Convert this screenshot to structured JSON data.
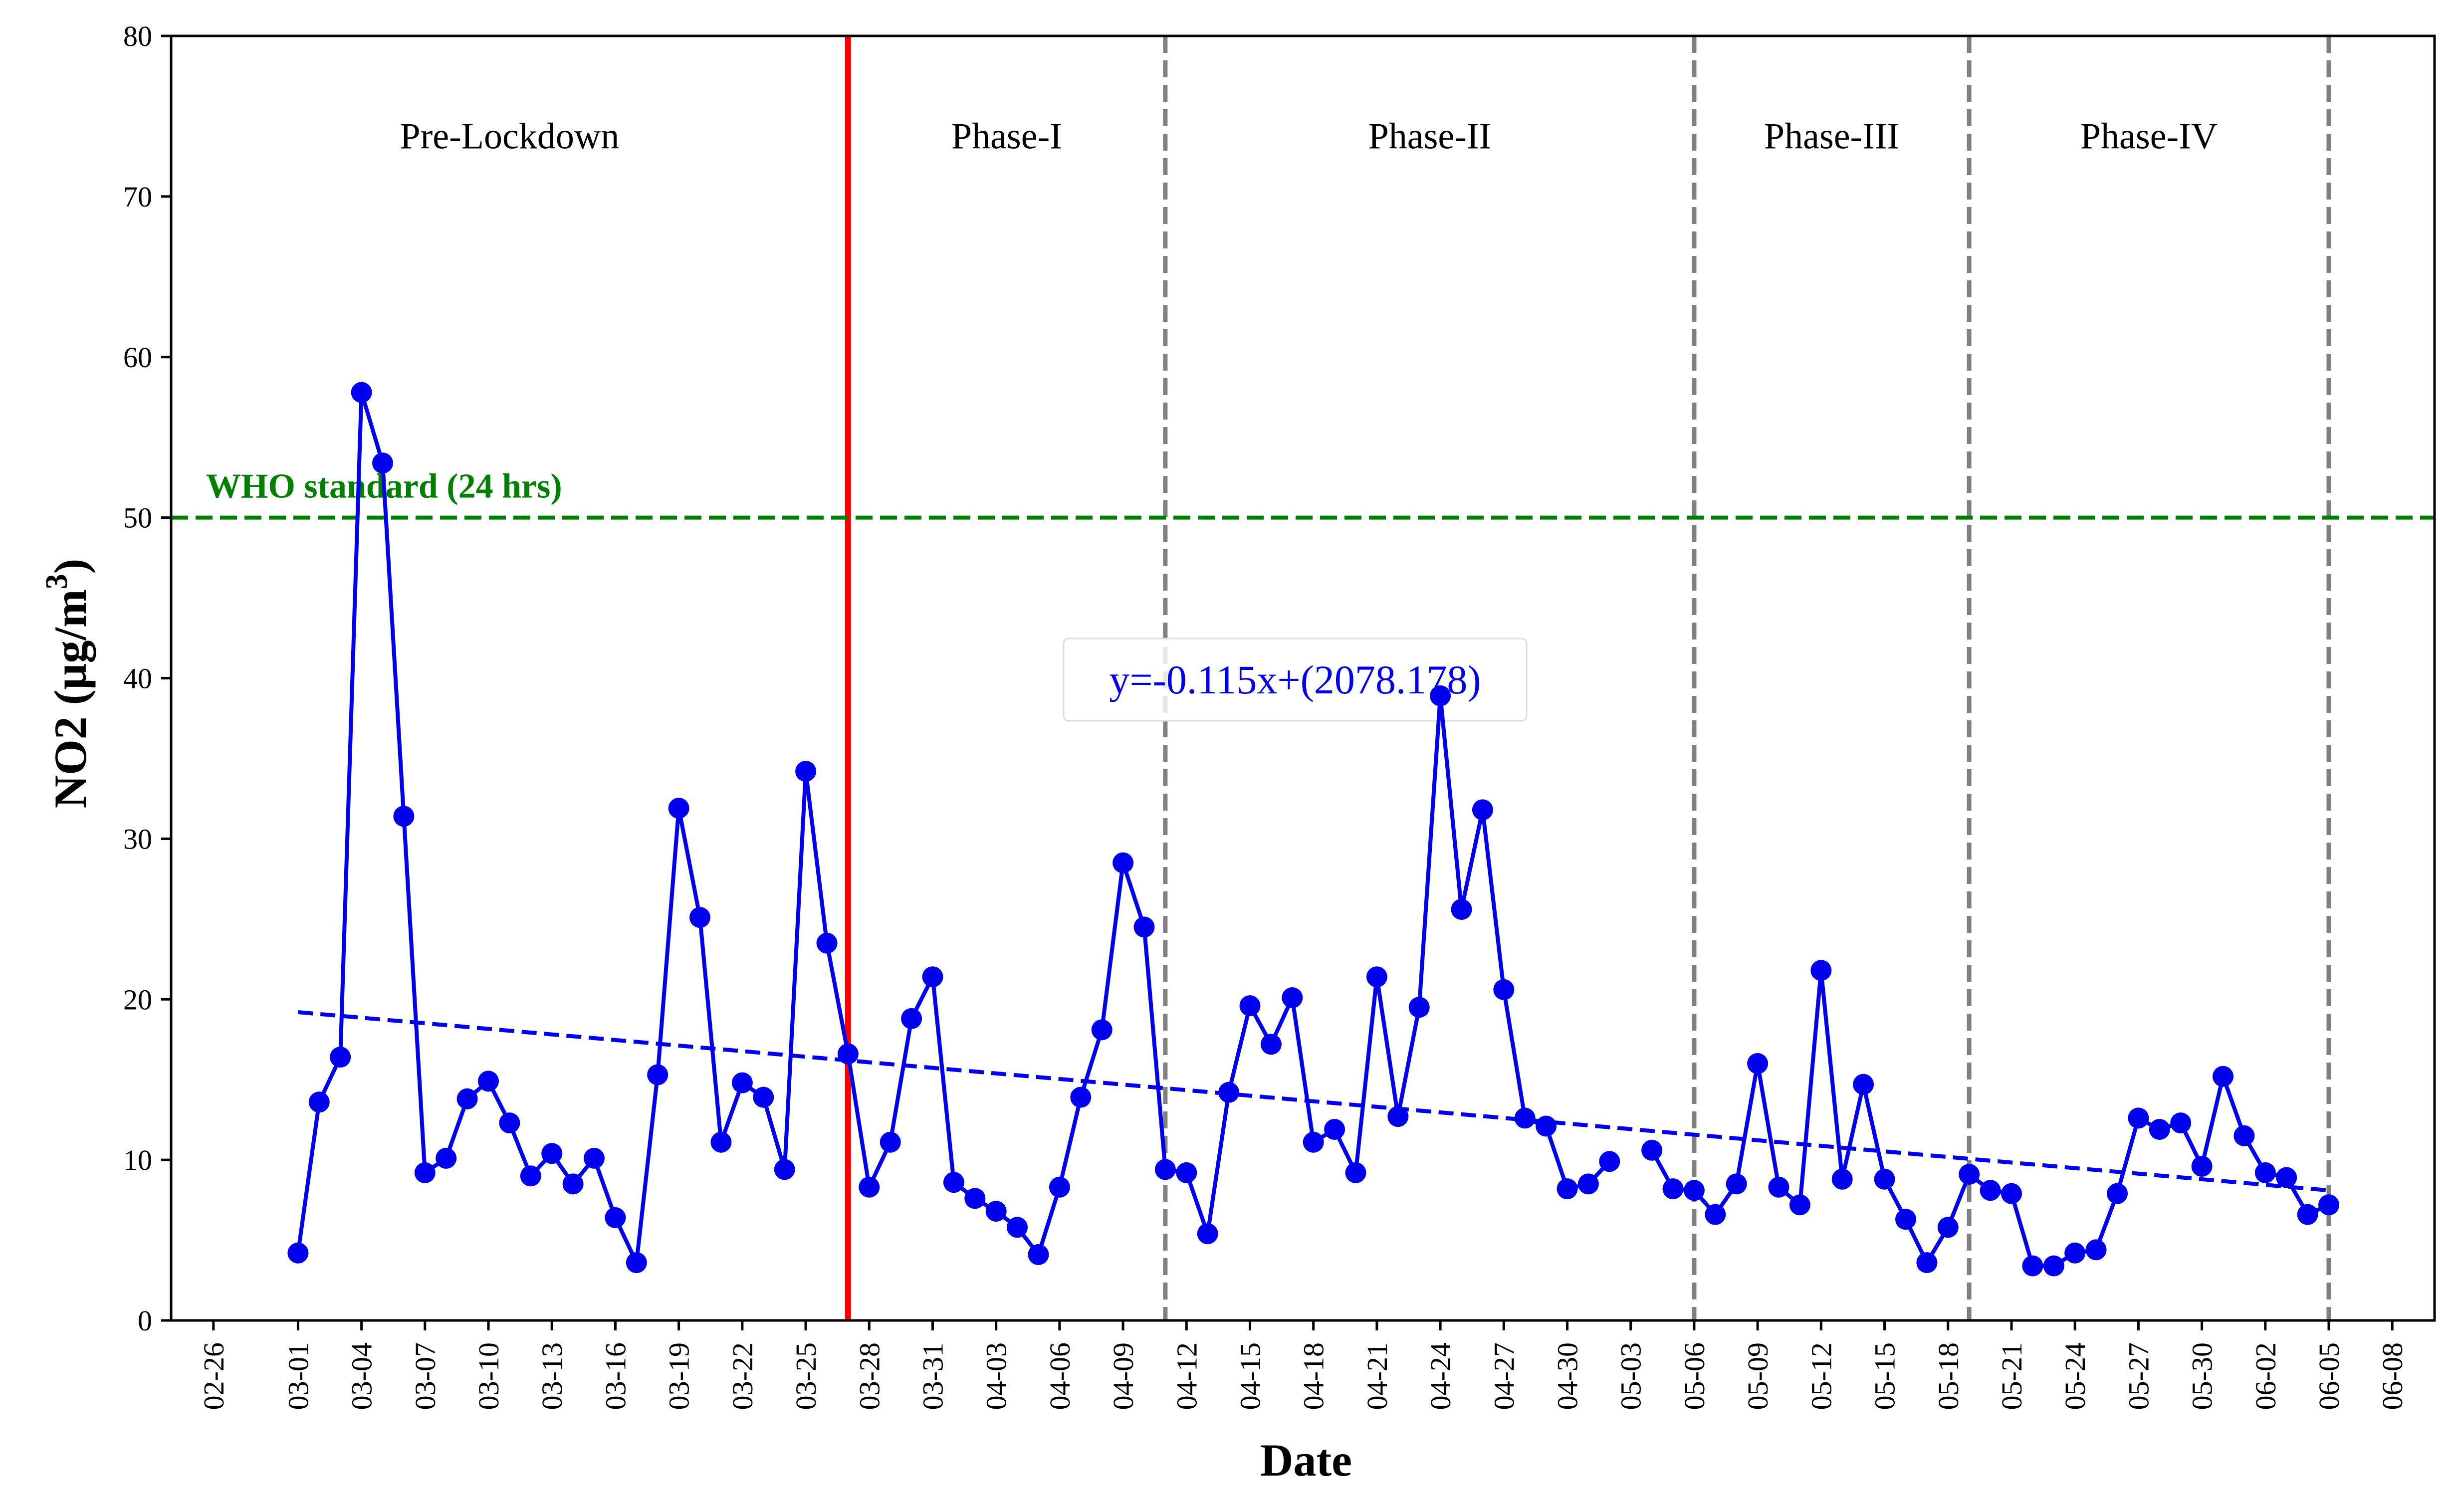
{
  "chart_data": {
    "type": "line",
    "xlabel": "Date",
    "ylabel": "NO2 (µg/m",
    "ylabel_superscript": "3",
    "ylabel_close": ")",
    "ylim": [
      0,
      80
    ],
    "yticks": [
      "0",
      "10",
      "20",
      "30",
      "40",
      "50",
      "60",
      "70",
      "80"
    ],
    "xlim": [
      "2020-02-24",
      "2020-06-10"
    ],
    "xticks": [
      "02-26",
      "03-01",
      "03-04",
      "03-07",
      "03-10",
      "03-13",
      "03-16",
      "03-19",
      "03-22",
      "03-25",
      "03-28",
      "03-31",
      "04-03",
      "04-06",
      "04-09",
      "04-12",
      "04-15",
      "04-18",
      "04-21",
      "04-24",
      "04-27",
      "04-30",
      "05-03",
      "05-06",
      "05-09",
      "05-12",
      "05-15",
      "05-18",
      "05-21",
      "05-24",
      "05-27",
      "05-30",
      "06-02",
      "06-05",
      "06-08"
    ],
    "xtick_dates": [
      "2020-02-26",
      "2020-03-01",
      "2020-03-04",
      "2020-03-07",
      "2020-03-10",
      "2020-03-13",
      "2020-03-16",
      "2020-03-19",
      "2020-03-22",
      "2020-03-25",
      "2020-03-28",
      "2020-03-31",
      "2020-04-03",
      "2020-04-06",
      "2020-04-09",
      "2020-04-12",
      "2020-04-15",
      "2020-04-18",
      "2020-04-21",
      "2020-04-24",
      "2020-04-27",
      "2020-04-30",
      "2020-05-03",
      "2020-05-06",
      "2020-05-09",
      "2020-05-12",
      "2020-05-15",
      "2020-05-18",
      "2020-05-21",
      "2020-05-24",
      "2020-05-27",
      "2020-05-30",
      "2020-06-02",
      "2020-06-05",
      "2020-06-08"
    ],
    "series": [
      {
        "color": "#0000ee",
        "segments": [
          [
            [
              "2020-03-01",
              4.2
            ],
            [
              "2020-03-02",
              13.6
            ],
            [
              "2020-03-03",
              16.4
            ],
            [
              "2020-03-04",
              57.8
            ],
            [
              "2020-03-05",
              53.4
            ],
            [
              "2020-03-06",
              31.4
            ],
            [
              "2020-03-07",
              9.2
            ],
            [
              "2020-03-08",
              10.1
            ],
            [
              "2020-03-09",
              13.8
            ],
            [
              "2020-03-10",
              14.9
            ],
            [
              "2020-03-11",
              12.3
            ],
            [
              "2020-03-12",
              9.0
            ],
            [
              "2020-03-13",
              10.4
            ],
            [
              "2020-03-14",
              8.5
            ],
            [
              "2020-03-15",
              10.1
            ],
            [
              "2020-03-16",
              6.4
            ],
            [
              "2020-03-17",
              3.6
            ],
            [
              "2020-03-18",
              15.3
            ],
            [
              "2020-03-19",
              31.9
            ],
            [
              "2020-03-20",
              25.1
            ],
            [
              "2020-03-21",
              11.1
            ],
            [
              "2020-03-22",
              14.8
            ],
            [
              "2020-03-23",
              13.9
            ],
            [
              "2020-03-24",
              9.4
            ],
            [
              "2020-03-25",
              34.2
            ],
            [
              "2020-03-26",
              23.5
            ],
            [
              "2020-03-27",
              16.6
            ],
            [
              "2020-03-28",
              8.3
            ],
            [
              "2020-03-29",
              11.1
            ],
            [
              "2020-03-30",
              18.8
            ],
            [
              "2020-03-31",
              21.4
            ],
            [
              "2020-04-01",
              8.6
            ],
            [
              "2020-04-02",
              7.6
            ],
            [
              "2020-04-03",
              6.8
            ],
            [
              "2020-04-04",
              5.8
            ],
            [
              "2020-04-05",
              4.1
            ],
            [
              "2020-04-06",
              8.3
            ],
            [
              "2020-04-07",
              13.9
            ],
            [
              "2020-04-08",
              18.1
            ],
            [
              "2020-04-09",
              28.5
            ],
            [
              "2020-04-10",
              24.5
            ],
            [
              "2020-04-11",
              9.4
            ],
            [
              "2020-04-12",
              9.2
            ],
            [
              "2020-04-13",
              5.4
            ],
            [
              "2020-04-14",
              14.2
            ],
            [
              "2020-04-15",
              19.6
            ],
            [
              "2020-04-16",
              17.2
            ],
            [
              "2020-04-17",
              20.1
            ],
            [
              "2020-04-18",
              11.1
            ],
            [
              "2020-04-19",
              11.9
            ],
            [
              "2020-04-20",
              9.2
            ],
            [
              "2020-04-21",
              21.4
            ],
            [
              "2020-04-22",
              12.7
            ],
            [
              "2020-04-23",
              19.5
            ],
            [
              "2020-04-24",
              38.9
            ],
            [
              "2020-04-25",
              25.6
            ],
            [
              "2020-04-26",
              31.8
            ],
            [
              "2020-04-27",
              20.6
            ],
            [
              "2020-04-28",
              12.6
            ],
            [
              "2020-04-29",
              12.1
            ],
            [
              "2020-04-30",
              8.2
            ],
            [
              "2020-05-01",
              8.5
            ],
            [
              "2020-05-02",
              9.9
            ]
          ],
          [
            [
              "2020-05-04",
              10.6
            ],
            [
              "2020-05-05",
              8.2
            ],
            [
              "2020-05-06",
              8.1
            ],
            [
              "2020-05-07",
              6.6
            ],
            [
              "2020-05-08",
              8.5
            ],
            [
              "2020-05-09",
              16.0
            ],
            [
              "2020-05-10",
              8.3
            ],
            [
              "2020-05-11",
              7.2
            ],
            [
              "2020-05-12",
              21.8
            ],
            [
              "2020-05-13",
              8.8
            ],
            [
              "2020-05-14",
              14.7
            ],
            [
              "2020-05-15",
              8.8
            ],
            [
              "2020-05-16",
              6.3
            ],
            [
              "2020-05-17",
              3.6
            ],
            [
              "2020-05-18",
              5.8
            ],
            [
              "2020-05-19",
              9.1
            ],
            [
              "2020-05-20",
              8.1
            ],
            [
              "2020-05-21",
              7.9
            ],
            [
              "2020-05-22",
              3.4
            ],
            [
              "2020-05-23",
              3.4
            ],
            [
              "2020-05-24",
              4.2
            ],
            [
              "2020-05-25",
              4.4
            ],
            [
              "2020-05-26",
              7.9
            ],
            [
              "2020-05-27",
              12.6
            ],
            [
              "2020-05-28",
              11.9
            ],
            [
              "2020-05-29",
              12.3
            ],
            [
              "2020-05-30",
              9.6
            ],
            [
              "2020-05-31",
              15.2
            ],
            [
              "2020-06-01",
              11.5
            ],
            [
              "2020-06-02",
              9.2
            ],
            [
              "2020-06-03",
              8.9
            ],
            [
              "2020-06-04",
              6.6
            ],
            [
              "2020-06-05",
              7.2
            ]
          ]
        ]
      }
    ],
    "trendline": {
      "label": "y=-0.115x+(2078.178)",
      "start": [
        "2020-03-01",
        19.2
      ],
      "end": [
        "2020-06-05",
        8.1
      ],
      "color": "#0000ee",
      "style": "dashed"
    },
    "reference_line": {
      "label": "WHO standard (24 hrs)",
      "value": 50,
      "color": "#008000",
      "style": "dashed"
    },
    "lockdown_line": {
      "date": "2020-03-27",
      "color": "#ff0000"
    },
    "phase_lines": [
      "2020-04-11",
      "2020-05-06",
      "2020-05-19",
      "2020-06-05"
    ],
    "phases": [
      {
        "label": "Pre-Lockdown",
        "start": "2020-02-24",
        "end": "2020-03-27"
      },
      {
        "label": "Phase-I",
        "start": "2020-03-27",
        "end": "2020-04-11"
      },
      {
        "label": "Phase-II",
        "start": "2020-04-11",
        "end": "2020-05-06"
      },
      {
        "label": "Phase-III",
        "start": "2020-05-06",
        "end": "2020-05-19"
      },
      {
        "label": "Phase-IV",
        "start": "2020-05-19",
        "end": "2020-06-05"
      }
    ],
    "phase_label_y": 73,
    "grid": false,
    "legend": "none"
  }
}
